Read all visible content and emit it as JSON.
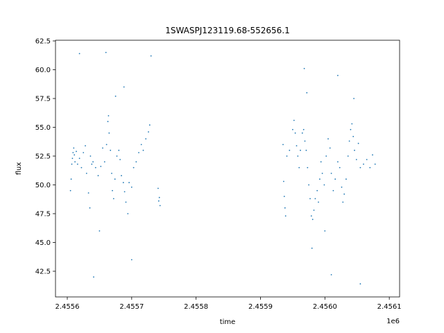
{
  "chart_data": {
    "type": "scatter",
    "title": "1SWASPJ123119.68-552656.1",
    "xlabel": "time",
    "ylabel": "flux",
    "x_offset_label": "1e6",
    "xlim": [
      2455581.7,
      2456116.0
    ],
    "ylim": [
      40.27,
      62.56
    ],
    "xticks": [
      2455600,
      2455700,
      2455800,
      2455900,
      2456000,
      2456100
    ],
    "xtick_labels": [
      "2.4556",
      "2.4557",
      "2.4558",
      "2.4559",
      "2.4560",
      "2.4561"
    ],
    "yticks": [
      42.5,
      45.0,
      47.5,
      50.0,
      52.5,
      55.0,
      57.5,
      60.0,
      62.5
    ],
    "ytick_labels": [
      "42.5",
      "45.0",
      "47.5",
      "50.0",
      "52.5",
      "55.0",
      "57.5",
      "60.0",
      "62.5"
    ],
    "grid": false,
    "color": "#1f77b4",
    "series": [
      {
        "name": "flux",
        "x": [
          2455605,
          2455606,
          2455607,
          2455608,
          2455609,
          2455610,
          2455611,
          2455612,
          2455614,
          2455616,
          2455619,
          2455622,
          2455625,
          2455628,
          2455630,
          2455633,
          2455635,
          2455636,
          2455638,
          2455640,
          2455644,
          2455648,
          2455652,
          2455655,
          2455658,
          2455661,
          2455663,
          2455664,
          2455665,
          2455667,
          2455669,
          2455670,
          2455672,
          2455674,
          2455677,
          2455680,
          2455682,
          2455684,
          2455687,
          2455689,
          2455691,
          2455694,
          2455696,
          2455700,
          2455703,
          2455707,
          2455711,
          2455715,
          2455718,
          2455722,
          2455726,
          2455728,
          2455741,
          2455742,
          2455743,
          2455744,
          2455619,
          2455660,
          2455641,
          2455700,
          2455730,
          2455675,
          2455650,
          2455688,
          2455935,
          2455936,
          2455937,
          2455938,
          2455939,
          2455941,
          2455945,
          2455950,
          2455952,
          2455954,
          2455956,
          2455958,
          2455960,
          2455962,
          2455965,
          2455967,
          2455969,
          2455971,
          2455973,
          2455975,
          2455977,
          2455979,
          2455981,
          2455983,
          2455985,
          2455988,
          2455990,
          2455992,
          2455994,
          2455996,
          2455999,
          2456002,
          2456005,
          2456008,
          2456010,
          2456013,
          2456016,
          2456020,
          2456023,
          2456026,
          2456028,
          2456030,
          2456033,
          2456036,
          2456038,
          2456040,
          2456042,
          2456044,
          2456046,
          2456049,
          2456052,
          2456055,
          2456060,
          2456065,
          2456070,
          2456074,
          2456078,
          2455968,
          2456020,
          2456010,
          2456055,
          2455980,
          2456045,
          2456000,
          2455972
        ],
        "y": [
          49.5,
          50.5,
          51.8,
          52.3,
          52.8,
          53.2,
          52.6,
          52.0,
          52.9,
          51.8,
          52.3,
          51.5,
          52.8,
          53.4,
          51.0,
          49.3,
          48.0,
          52.5,
          51.8,
          52.0,
          51.5,
          50.8,
          51.6,
          53.2,
          52.0,
          53.5,
          55.5,
          56.0,
          54.5,
          53.0,
          51.0,
          49.5,
          48.8,
          50.5,
          52.5,
          53.0,
          52.2,
          50.8,
          50.2,
          49.4,
          48.5,
          47.5,
          50.2,
          49.8,
          51.5,
          52.0,
          52.8,
          53.5,
          53.0,
          54.0,
          54.6,
          55.2,
          49.7,
          48.6,
          48.9,
          48.2,
          61.4,
          61.5,
          42.0,
          43.5,
          61.2,
          57.7,
          46.0,
          58.5,
          53.5,
          50.3,
          49.0,
          48.0,
          47.3,
          52.5,
          53.0,
          54.8,
          55.6,
          54.5,
          53.4,
          52.5,
          51.5,
          53.0,
          54.5,
          54.8,
          53.8,
          53.0,
          51.5,
          50.0,
          48.8,
          47.3,
          47.0,
          47.8,
          48.8,
          49.5,
          48.5,
          50.5,
          52.0,
          51.0,
          50.0,
          52.5,
          54.0,
          53.2,
          51.0,
          49.5,
          50.5,
          52.0,
          51.5,
          49.8,
          48.5,
          49.2,
          50.5,
          52.5,
          53.8,
          54.8,
          55.3,
          54.2,
          53.0,
          52.2,
          53.6,
          51.5,
          51.8,
          52.2,
          51.5,
          52.6,
          51.8,
          60.1,
          59.5,
          42.2,
          41.4,
          44.5,
          57.5,
          46.0,
          58.0
        ]
      }
    ]
  }
}
